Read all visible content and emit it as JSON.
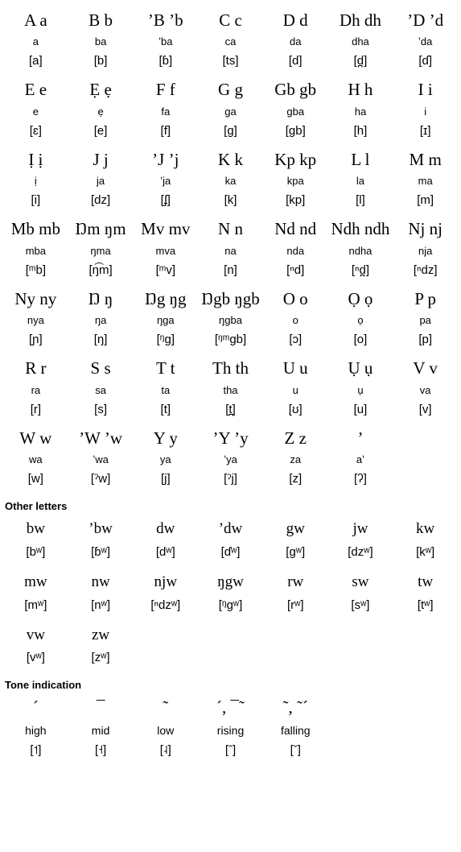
{
  "alphabet": [
    [
      {
        "letter": "A a",
        "name": "a",
        "ipa": "[a]"
      },
      {
        "letter": "B b",
        "name": "ba",
        "ipa": "[b]"
      },
      {
        "letter": "ʼB ʼb",
        "name": "ʼba",
        "ipa": "[ɓ]"
      },
      {
        "letter": "C c",
        "name": "ca",
        "ipa": "[ts]"
      },
      {
        "letter": "D d",
        "name": "da",
        "ipa": "[d]"
      },
      {
        "letter": "Dh dh",
        "name": "dha",
        "ipa": "[d̪]"
      },
      {
        "letter": "ʼD ʼd",
        "name": "ʼda",
        "ipa": "[ɗ]"
      }
    ],
    [
      {
        "letter": "E e",
        "name": "e",
        "ipa": "[ɛ]"
      },
      {
        "letter": "Ẹ ẹ",
        "name": "ẹ",
        "ipa": "[e]"
      },
      {
        "letter": "F f",
        "name": "fa",
        "ipa": "[f]"
      },
      {
        "letter": "G g",
        "name": "ga",
        "ipa": "[g]"
      },
      {
        "letter": "Gb gb",
        "name": "gba",
        "ipa": "[gb]"
      },
      {
        "letter": "H h",
        "name": "ha",
        "ipa": "[h]"
      },
      {
        "letter": "I i",
        "name": "i",
        "ipa": "[ɪ]"
      }
    ],
    [
      {
        "letter": "Ị ị",
        "name": "ị",
        "ipa": "[i]"
      },
      {
        "letter": "J j",
        "name": "ja",
        "ipa": "[dz]"
      },
      {
        "letter": "ʼJ ʼj",
        "name": "ʼja",
        "ipa": "[ʄ]"
      },
      {
        "letter": "K k",
        "name": "ka",
        "ipa": "[k]"
      },
      {
        "letter": "Kp kp",
        "name": "kpa",
        "ipa": "[kp]"
      },
      {
        "letter": "L l",
        "name": "la",
        "ipa": "[l]"
      },
      {
        "letter": "M m",
        "name": "ma",
        "ipa": "[m]"
      }
    ],
    [
      {
        "letter": "Mb mb",
        "name": "mba",
        "ipa": "[ᵐb]"
      },
      {
        "letter": "Ŋm ŋm",
        "name": "ŋma",
        "ipa": "[ŋ͡m]"
      },
      {
        "letter": "Mv mv",
        "name": "mva",
        "ipa": "[ᵐv]"
      },
      {
        "letter": "N n",
        "name": "na",
        "ipa": "[n]"
      },
      {
        "letter": "Nd nd",
        "name": "nda",
        "ipa": "[ⁿd]"
      },
      {
        "letter": "Ndh ndh",
        "name": "ndha",
        "ipa": "[ⁿd̪]"
      },
      {
        "letter": "Nj nj",
        "name": "nja",
        "ipa": "[ⁿdz]"
      }
    ],
    [
      {
        "letter": "Ny ny",
        "name": "nya",
        "ipa": "[ɲ]"
      },
      {
        "letter": "Ŋ ŋ",
        "name": "ŋa",
        "ipa": "[ŋ]"
      },
      {
        "letter": "Ŋg ŋg",
        "name": "ŋga",
        "ipa": "[ᵑg]"
      },
      {
        "letter": "Ŋgb ŋgb",
        "name": "ŋgba",
        "ipa": "[ᵑᵐgb]"
      },
      {
        "letter": "O o",
        "name": "o",
        "ipa": "[ɔ]"
      },
      {
        "letter": "Ọ ọ",
        "name": "ọ",
        "ipa": "[o]"
      },
      {
        "letter": "P p",
        "name": "pa",
        "ipa": "[p]"
      }
    ],
    [
      {
        "letter": "R r",
        "name": "ra",
        "ipa": "[r]"
      },
      {
        "letter": "S s",
        "name": "sa",
        "ipa": "[s]"
      },
      {
        "letter": "T t",
        "name": "ta",
        "ipa": "[t]"
      },
      {
        "letter": "Th th",
        "name": "tha",
        "ipa": "[t̪]"
      },
      {
        "letter": "U u",
        "name": "u",
        "ipa": "[ʊ]"
      },
      {
        "letter": "Ụ ụ",
        "name": "ụ",
        "ipa": "[u]"
      },
      {
        "letter": "V v",
        "name": "va",
        "ipa": "[v]"
      }
    ],
    [
      {
        "letter": "W w",
        "name": "wa",
        "ipa": "[w]"
      },
      {
        "letter": "ʼW ʼw",
        "name": "ʼwa",
        "ipa": "[ˀw]"
      },
      {
        "letter": "Y y",
        "name": "ya",
        "ipa": "[j]"
      },
      {
        "letter": "ʼY ʼy",
        "name": "ʼya",
        "ipa": "[ˀj]"
      },
      {
        "letter": "Z z",
        "name": "za",
        "ipa": "[z]"
      },
      {
        "letter": "ʼ",
        "name": "aʼ",
        "ipa": "[ʔ]"
      },
      {
        "letter": "",
        "name": "",
        "ipa": ""
      }
    ]
  ],
  "other_title": "Other letters",
  "other": [
    [
      {
        "letter": "bw",
        "ipa": "[bʷ]"
      },
      {
        "letter": "ʼbw",
        "ipa": "[ɓʷ]"
      },
      {
        "letter": "dw",
        "ipa": "[dʷ]"
      },
      {
        "letter": "ʼdw",
        "ipa": "[ɗʷ]"
      },
      {
        "letter": "gw",
        "ipa": "[gʷ]"
      },
      {
        "letter": "jw",
        "ipa": "[dzʷ]"
      },
      {
        "letter": "kw",
        "ipa": "[kʷ]"
      }
    ],
    [
      {
        "letter": "mw",
        "ipa": "[mʷ]"
      },
      {
        "letter": "nw",
        "ipa": "[nʷ]"
      },
      {
        "letter": "njw",
        "ipa": "[ⁿdzʷ]"
      },
      {
        "letter": "ŋgw",
        "ipa": "[ᵑgʷ]"
      },
      {
        "letter": "rw",
        "ipa": "[rʷ]"
      },
      {
        "letter": "sw",
        "ipa": "[sʷ]"
      },
      {
        "letter": "tw",
        "ipa": "[tʷ]"
      }
    ],
    [
      {
        "letter": "vw",
        "ipa": "[vʷ]"
      },
      {
        "letter": "zw",
        "ipa": "[zʷ]"
      },
      {
        "letter": "",
        "ipa": ""
      },
      {
        "letter": "",
        "ipa": ""
      },
      {
        "letter": "",
        "ipa": ""
      },
      {
        "letter": "",
        "ipa": ""
      },
      {
        "letter": "",
        "ipa": ""
      }
    ]
  ],
  "tone_title": "Tone indication",
  "tones": [
    {
      "mark": "´",
      "label": "high",
      "ipa": "[˦]"
    },
    {
      "mark": "¯",
      "label": "mid",
      "ipa": "[˧]"
    },
    {
      "mark": "˜",
      "label": "low",
      "ipa": "[˨]"
    },
    {
      "mark": "´, ¯˜",
      "label": "rising",
      "ipa": "[ˆ]"
    },
    {
      "mark": "˜, ˜´",
      "label": "falling",
      "ipa": "[ˇ]"
    },
    {
      "mark": "",
      "label": "",
      "ipa": ""
    },
    {
      "mark": "",
      "label": "",
      "ipa": ""
    }
  ]
}
